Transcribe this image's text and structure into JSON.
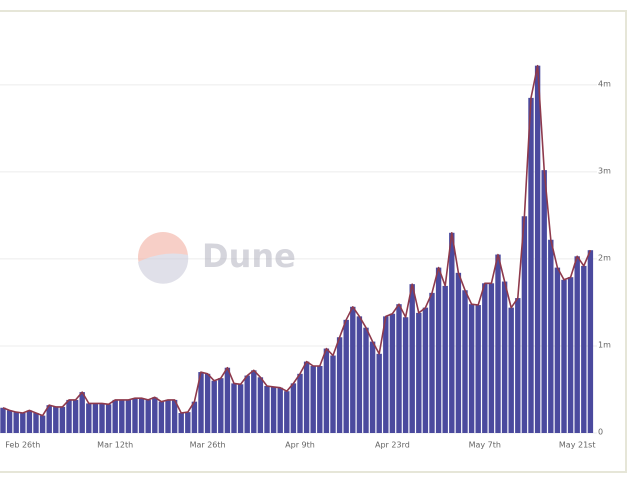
{
  "chart_data": {
    "type": "bar",
    "watermark": "Dune",
    "categories": [
      null,
      null,
      null,
      "Feb 26th",
      null,
      null,
      null,
      null,
      null,
      null,
      null,
      null,
      null,
      null,
      null,
      null,
      null,
      "Mar 12th",
      null,
      null,
      null,
      null,
      null,
      null,
      null,
      null,
      null,
      null,
      null,
      null,
      null,
      "Mar 26th",
      null,
      null,
      null,
      null,
      null,
      null,
      null,
      null,
      null,
      null,
      null,
      null,
      null,
      "Apr 9th",
      null,
      null,
      null,
      null,
      null,
      null,
      null,
      null,
      null,
      null,
      null,
      null,
      null,
      "Apr 23rd",
      null,
      null,
      null,
      null,
      null,
      null,
      null,
      null,
      null,
      null,
      null,
      null,
      null,
      "May 7th",
      null,
      null,
      null,
      null,
      null,
      null,
      null,
      null,
      null,
      null,
      null,
      null,
      null,
      "May 21st",
      null,
      null
    ],
    "values": [
      290000,
      260000,
      240000,
      230000,
      260000,
      230000,
      200000,
      320000,
      300000,
      300000,
      380000,
      380000,
      470000,
      340000,
      340000,
      340000,
      330000,
      380000,
      380000,
      380000,
      400000,
      400000,
      380000,
      410000,
      360000,
      380000,
      380000,
      230000,
      240000,
      360000,
      700000,
      680000,
      600000,
      630000,
      750000,
      570000,
      560000,
      660000,
      720000,
      640000,
      540000,
      530000,
      520000,
      480000,
      570000,
      680000,
      820000,
      770000,
      770000,
      970000,
      890000,
      1100000,
      1300000,
      1450000,
      1340000,
      1210000,
      1050000,
      910000,
      1340000,
      1370000,
      1480000,
      1330000,
      1710000,
      1380000,
      1440000,
      1610000,
      1900000,
      1690000,
      2300000,
      1840000,
      1640000,
      1480000,
      1470000,
      1720000,
      1720000,
      2050000,
      1740000,
      1440000,
      1550000,
      2490000,
      3850000,
      4220000,
      3020000,
      2220000,
      1900000,
      1760000,
      1790000,
      2030000,
      1920000,
      2100000
    ],
    "color": "#4b4a9e",
    "line_color": "#8e3a4c",
    "ylim": [
      0,
      4400000
    ],
    "yticks": [
      {
        "value": 0,
        "label": "0"
      },
      {
        "value": 1000000,
        "label": "1m"
      },
      {
        "value": 2000000,
        "label": "2m"
      },
      {
        "value": 3000000,
        "label": "3m"
      },
      {
        "value": 4000000,
        "label": "4m"
      }
    ],
    "grid": true
  }
}
